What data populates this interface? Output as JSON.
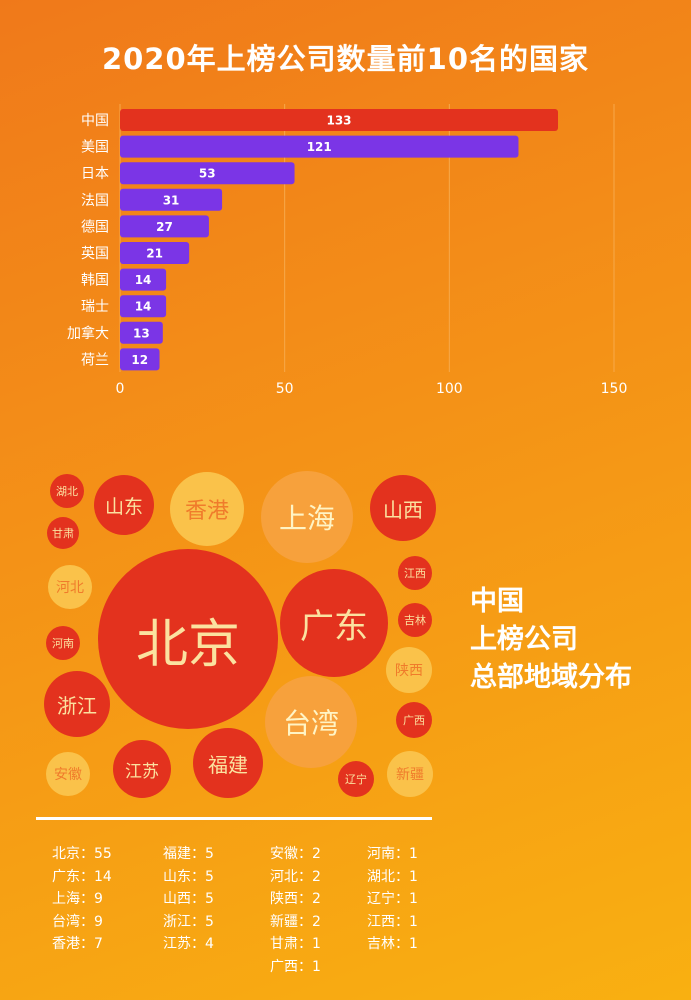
{
  "title": "2020年上榜公司数量前10名的国家",
  "colors": {
    "china_bar": "#e3321e",
    "other_bar": "#7b35e6",
    "bubble_red": "#e3321e",
    "bubble_yellow": "#fac24a",
    "bubble_orange": "#f7a13c"
  },
  "chart_data": {
    "type": "bar",
    "orientation": "horizontal",
    "categories": [
      "中国",
      "美国",
      "日本",
      "法国",
      "德国",
      "英国",
      "韩国",
      "瑞士",
      "加拿大",
      "荷兰"
    ],
    "values": [
      133,
      121,
      53,
      31,
      27,
      21,
      14,
      14,
      13,
      12
    ],
    "xlim": [
      0,
      150
    ],
    "xticks": [
      0,
      50,
      100,
      150
    ],
    "grid": true
  },
  "bubbles": [
    {
      "name": "北京",
      "style": "red"
    },
    {
      "name": "广东",
      "style": "red"
    },
    {
      "name": "上海",
      "style": "orange"
    },
    {
      "name": "台湾",
      "style": "orange"
    },
    {
      "name": "香港",
      "style": "yellow"
    },
    {
      "name": "山东",
      "style": "red"
    },
    {
      "name": "山西",
      "style": "red"
    },
    {
      "name": "浙江",
      "style": "red"
    },
    {
      "name": "福建",
      "style": "red"
    },
    {
      "name": "江苏",
      "style": "red"
    },
    {
      "name": "湖北",
      "style": "red"
    },
    {
      "name": "甘肃",
      "style": "red"
    },
    {
      "name": "河北",
      "style": "yellow"
    },
    {
      "name": "河南",
      "style": "red"
    },
    {
      "name": "安徽",
      "style": "yellow"
    },
    {
      "name": "江西",
      "style": "red"
    },
    {
      "name": "吉林",
      "style": "red"
    },
    {
      "name": "陕西",
      "style": "yellow"
    },
    {
      "name": "广西",
      "style": "red"
    },
    {
      "name": "辽宁",
      "style": "red"
    },
    {
      "name": "新疆",
      "style": "yellow"
    }
  ],
  "side_caption": [
    "中国",
    "上榜公司",
    "总部地域分布"
  ],
  "stats": [
    [
      "北京：55",
      "广东：14",
      "上海：9",
      "台湾：9",
      "香港：7"
    ],
    [
      "福建：5",
      "山东：5",
      "山西：5",
      "浙江：5",
      "江苏：4"
    ],
    [
      "安徽：2",
      "河北：2",
      "陕西：2",
      "新疆：2",
      "甘肃：1",
      "广西：1"
    ],
    [
      "河南：1",
      "湖北：1",
      "辽宁：1",
      "江西：1",
      "吉林：1"
    ]
  ]
}
